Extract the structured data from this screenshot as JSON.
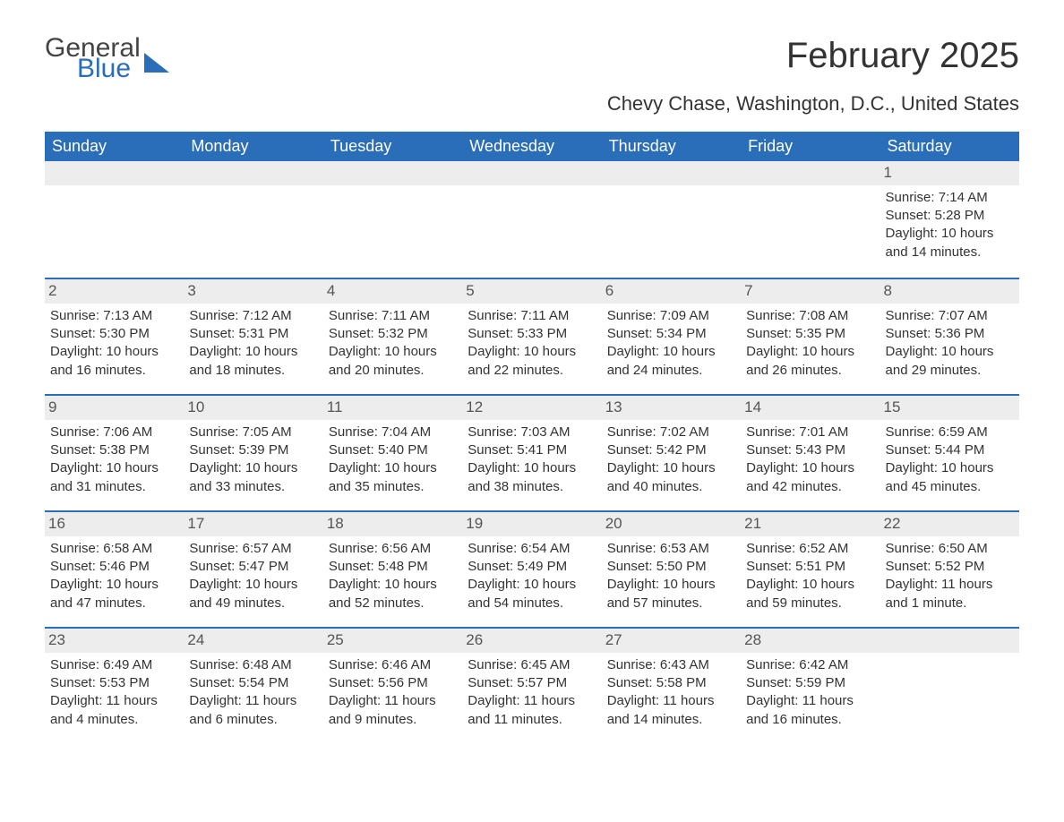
{
  "logo": {
    "part1": "General",
    "part2": "Blue"
  },
  "title": "February 2025",
  "subtitle": "Chevy Chase, Washington, D.C., United States",
  "colors": {
    "header_bg": "#2a6db8",
    "header_text": "#ffffff",
    "daynum_bg": "#ededed",
    "text": "#333333",
    "week_border": "#2a6db8"
  },
  "fonts": {
    "title_pt": 40,
    "subtitle_pt": 22,
    "dow_pt": 18,
    "body_pt": 15
  },
  "days_of_week": [
    "Sunday",
    "Monday",
    "Tuesday",
    "Wednesday",
    "Thursday",
    "Friday",
    "Saturday"
  ],
  "weeks": [
    [
      null,
      null,
      null,
      null,
      null,
      null,
      {
        "n": "1",
        "sr": "7:14 AM",
        "ss": "5:28 PM",
        "dl": "10 hours and 14 minutes."
      }
    ],
    [
      {
        "n": "2",
        "sr": "7:13 AM",
        "ss": "5:30 PM",
        "dl": "10 hours and 16 minutes."
      },
      {
        "n": "3",
        "sr": "7:12 AM",
        "ss": "5:31 PM",
        "dl": "10 hours and 18 minutes."
      },
      {
        "n": "4",
        "sr": "7:11 AM",
        "ss": "5:32 PM",
        "dl": "10 hours and 20 minutes."
      },
      {
        "n": "5",
        "sr": "7:11 AM",
        "ss": "5:33 PM",
        "dl": "10 hours and 22 minutes."
      },
      {
        "n": "6",
        "sr": "7:09 AM",
        "ss": "5:34 PM",
        "dl": "10 hours and 24 minutes."
      },
      {
        "n": "7",
        "sr": "7:08 AM",
        "ss": "5:35 PM",
        "dl": "10 hours and 26 minutes."
      },
      {
        "n": "8",
        "sr": "7:07 AM",
        "ss": "5:36 PM",
        "dl": "10 hours and 29 minutes."
      }
    ],
    [
      {
        "n": "9",
        "sr": "7:06 AM",
        "ss": "5:38 PM",
        "dl": "10 hours and 31 minutes."
      },
      {
        "n": "10",
        "sr": "7:05 AM",
        "ss": "5:39 PM",
        "dl": "10 hours and 33 minutes."
      },
      {
        "n": "11",
        "sr": "7:04 AM",
        "ss": "5:40 PM",
        "dl": "10 hours and 35 minutes."
      },
      {
        "n": "12",
        "sr": "7:03 AM",
        "ss": "5:41 PM",
        "dl": "10 hours and 38 minutes."
      },
      {
        "n": "13",
        "sr": "7:02 AM",
        "ss": "5:42 PM",
        "dl": "10 hours and 40 minutes."
      },
      {
        "n": "14",
        "sr": "7:01 AM",
        "ss": "5:43 PM",
        "dl": "10 hours and 42 minutes."
      },
      {
        "n": "15",
        "sr": "6:59 AM",
        "ss": "5:44 PM",
        "dl": "10 hours and 45 minutes."
      }
    ],
    [
      {
        "n": "16",
        "sr": "6:58 AM",
        "ss": "5:46 PM",
        "dl": "10 hours and 47 minutes."
      },
      {
        "n": "17",
        "sr": "6:57 AM",
        "ss": "5:47 PM",
        "dl": "10 hours and 49 minutes."
      },
      {
        "n": "18",
        "sr": "6:56 AM",
        "ss": "5:48 PM",
        "dl": "10 hours and 52 minutes."
      },
      {
        "n": "19",
        "sr": "6:54 AM",
        "ss": "5:49 PM",
        "dl": "10 hours and 54 minutes."
      },
      {
        "n": "20",
        "sr": "6:53 AM",
        "ss": "5:50 PM",
        "dl": "10 hours and 57 minutes."
      },
      {
        "n": "21",
        "sr": "6:52 AM",
        "ss": "5:51 PM",
        "dl": "10 hours and 59 minutes."
      },
      {
        "n": "22",
        "sr": "6:50 AM",
        "ss": "5:52 PM",
        "dl": "11 hours and 1 minute."
      }
    ],
    [
      {
        "n": "23",
        "sr": "6:49 AM",
        "ss": "5:53 PM",
        "dl": "11 hours and 4 minutes."
      },
      {
        "n": "24",
        "sr": "6:48 AM",
        "ss": "5:54 PM",
        "dl": "11 hours and 6 minutes."
      },
      {
        "n": "25",
        "sr": "6:46 AM",
        "ss": "5:56 PM",
        "dl": "11 hours and 9 minutes."
      },
      {
        "n": "26",
        "sr": "6:45 AM",
        "ss": "5:57 PM",
        "dl": "11 hours and 11 minutes."
      },
      {
        "n": "27",
        "sr": "6:43 AM",
        "ss": "5:58 PM",
        "dl": "11 hours and 14 minutes."
      },
      {
        "n": "28",
        "sr": "6:42 AM",
        "ss": "5:59 PM",
        "dl": "11 hours and 16 minutes."
      },
      null
    ]
  ],
  "labels": {
    "sunrise": "Sunrise: ",
    "sunset": "Sunset: ",
    "daylight": "Daylight: "
  }
}
